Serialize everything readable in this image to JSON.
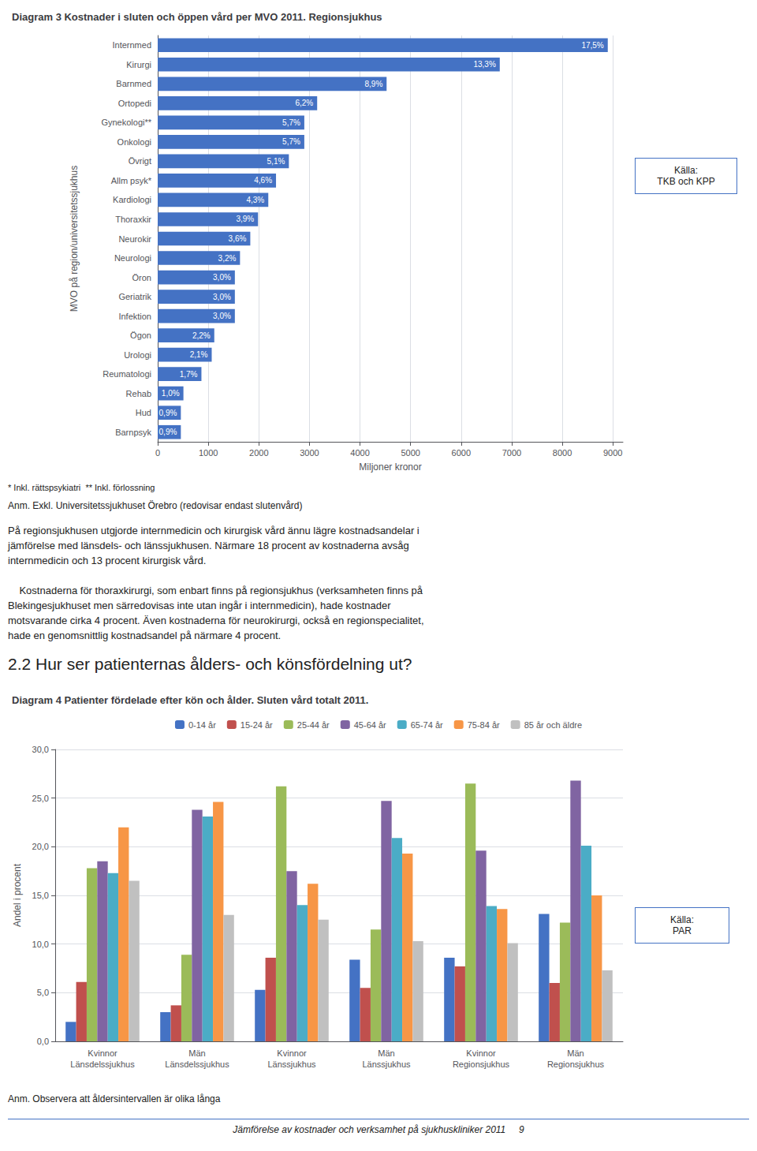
{
  "chart_data": [
    {
      "type": "bar",
      "orientation": "horizontal",
      "title": "Diagram 3 Kostnader i sluten och öppen vård per MVO 2011. Regionsjukhus",
      "xlabel": "Miljoner kronor",
      "ylabel": "MVO på region/universitetssjukhus",
      "categories": [
        "Internmed",
        "Kirurgi",
        "Barnmed",
        "Ortopedi",
        "Gynekologi**",
        "Onkologi",
        "Övrigt",
        "Allm psyk*",
        "Kardiologi",
        "Thoraxkir",
        "Neurokir",
        "Neurologi",
        "Öron",
        "Geriatrik",
        "Infektion",
        "Ögon",
        "Urologi",
        "Reumatologi",
        "Rehab",
        "Hud",
        "Barnpsyk"
      ],
      "values": [
        8900,
        6764,
        4526.285714285714,
        3153.142857142857,
        2898.857142857143,
        2898.857142857143,
        2593.714285714286,
        2339.428571428571,
        2186.857142857143,
        1983.428571428571,
        1830.857142857143,
        1627.428571428571,
        1525.714285714286,
        1525.714285714286,
        1525.714285714286,
        1118.857142857143,
        1068,
        864.5714285714286,
        508.5714285714286,
        457.7142857142857,
        457.7142857142857
      ],
      "value_labels": [
        "17,5%",
        "13,3%",
        "8,9%",
        "6,2%",
        "5,7%",
        "5,7%",
        "5,1%",
        "4,6%",
        "4,3%",
        "3,9%",
        "3,6%",
        "3,2%",
        "3,0%",
        "3,0%",
        "3,0%",
        "2,2%",
        "2,1%",
        "1,7%",
        "1,0%",
        "0,9%",
        "0,9%"
      ],
      "data_labels": true,
      "color": "#4472C4",
      "xlim": [
        0,
        9200
      ],
      "xticks": [
        0,
        1000,
        2000,
        3000,
        4000,
        5000,
        6000,
        7000,
        8000,
        9000
      ],
      "grid": true,
      "annotations": [
        "* Inkl. rättspsykiatri  ** Inkl. förlossning",
        "Källa:\nTKB och KPP",
        "Anm. Exkl. Universitetssjukhuset Örebro (redovisar endast slutenvård)",
        "På regionsjukhusen utgjorde internmedicin och kirurgisk vård ännu lägre kostnadsandelar i\njämförelse med länsdels- och länssjukhusen. Närmare 18 procent av kostnaderna avsåg\ninternmedicin och 13 procent kirurgisk vård.",
        "    Kostnaderna för thoraxkirurgi, som enbart finns på regionsjukhus (verksamheten finns på\nBlekingesjukhuset men särredovisas inte utan ingår i internmedicin), hade kostnader\nmotsvarande cirka 4 procent. Även kostnaderna för neurokirurgi, också en regionspecialitet,\nhade en genomsnittlig kostnadsandel på närmare 4 procent."
      ]
    },
    {
      "type": "bar",
      "title": "Diagram 4 Patienter fördelade efter kön och ålder. Sluten vård totalt 2011.",
      "ylabel": "Andel i procent",
      "categories": [
        "Kvinnor\nLänsdelssjukhus",
        "Män\nLänsdelssjukhus",
        "Kvinnor\nLänssjukhus",
        "Män\nLänssjukhus",
        "Kvinnor\nRegionsjukhus",
        "Män\nRegionsjukhus"
      ],
      "series": [
        {
          "name": "0-14 år",
          "color": "#4472C4",
          "values": [
            2.0,
            3.0,
            5.3,
            8.4,
            8.6,
            13.1
          ]
        },
        {
          "name": "15-24 år",
          "color": "#C0504D",
          "values": [
            6.1,
            3.7,
            8.6,
            5.5,
            7.7,
            6.0
          ]
        },
        {
          "name": "25-44 år",
          "color": "#9BBB59",
          "values": [
            17.8,
            8.9,
            26.2,
            11.5,
            26.5,
            12.2
          ]
        },
        {
          "name": "45-64 år",
          "color": "#8064A2",
          "values": [
            18.5,
            23.8,
            17.5,
            24.7,
            19.6,
            26.8
          ]
        },
        {
          "name": "65-74 år",
          "color": "#4BACC6",
          "values": [
            17.3,
            23.1,
            14.0,
            20.9,
            13.9,
            20.1
          ]
        },
        {
          "name": "75-84 år",
          "color": "#F79646",
          "values": [
            22.0,
            24.6,
            16.2,
            19.3,
            13.6,
            15.0
          ]
        },
        {
          "name": "85 år och äldre",
          "color": "#C0C0C0",
          "values": [
            16.5,
            13.0,
            12.5,
            10.3,
            10.1,
            7.3
          ]
        }
      ],
      "ylim": [
        0,
        30
      ],
      "yticks": [
        {
          "value": 0,
          "label": "0,0"
        },
        {
          "value": 5,
          "label": "5,0"
        },
        {
          "value": 10,
          "label": "10,0"
        },
        {
          "value": 15,
          "label": "15,0"
        },
        {
          "value": 20,
          "label": "20,0"
        },
        {
          "value": 25,
          "label": "25,0"
        },
        {
          "value": 30,
          "label": "30,0"
        }
      ],
      "grid": true,
      "legend": "top",
      "annotations": [
        "2.2 Hur ser patienternas ålders- och könsfördelning ut?",
        "Källa:\nPAR",
        "Anm. Observera att åldersintervallen är olika långa",
        "Jämförelse av kostnader och verksamhet på sjukhuskliniker 2011     9"
      ]
    }
  ]
}
